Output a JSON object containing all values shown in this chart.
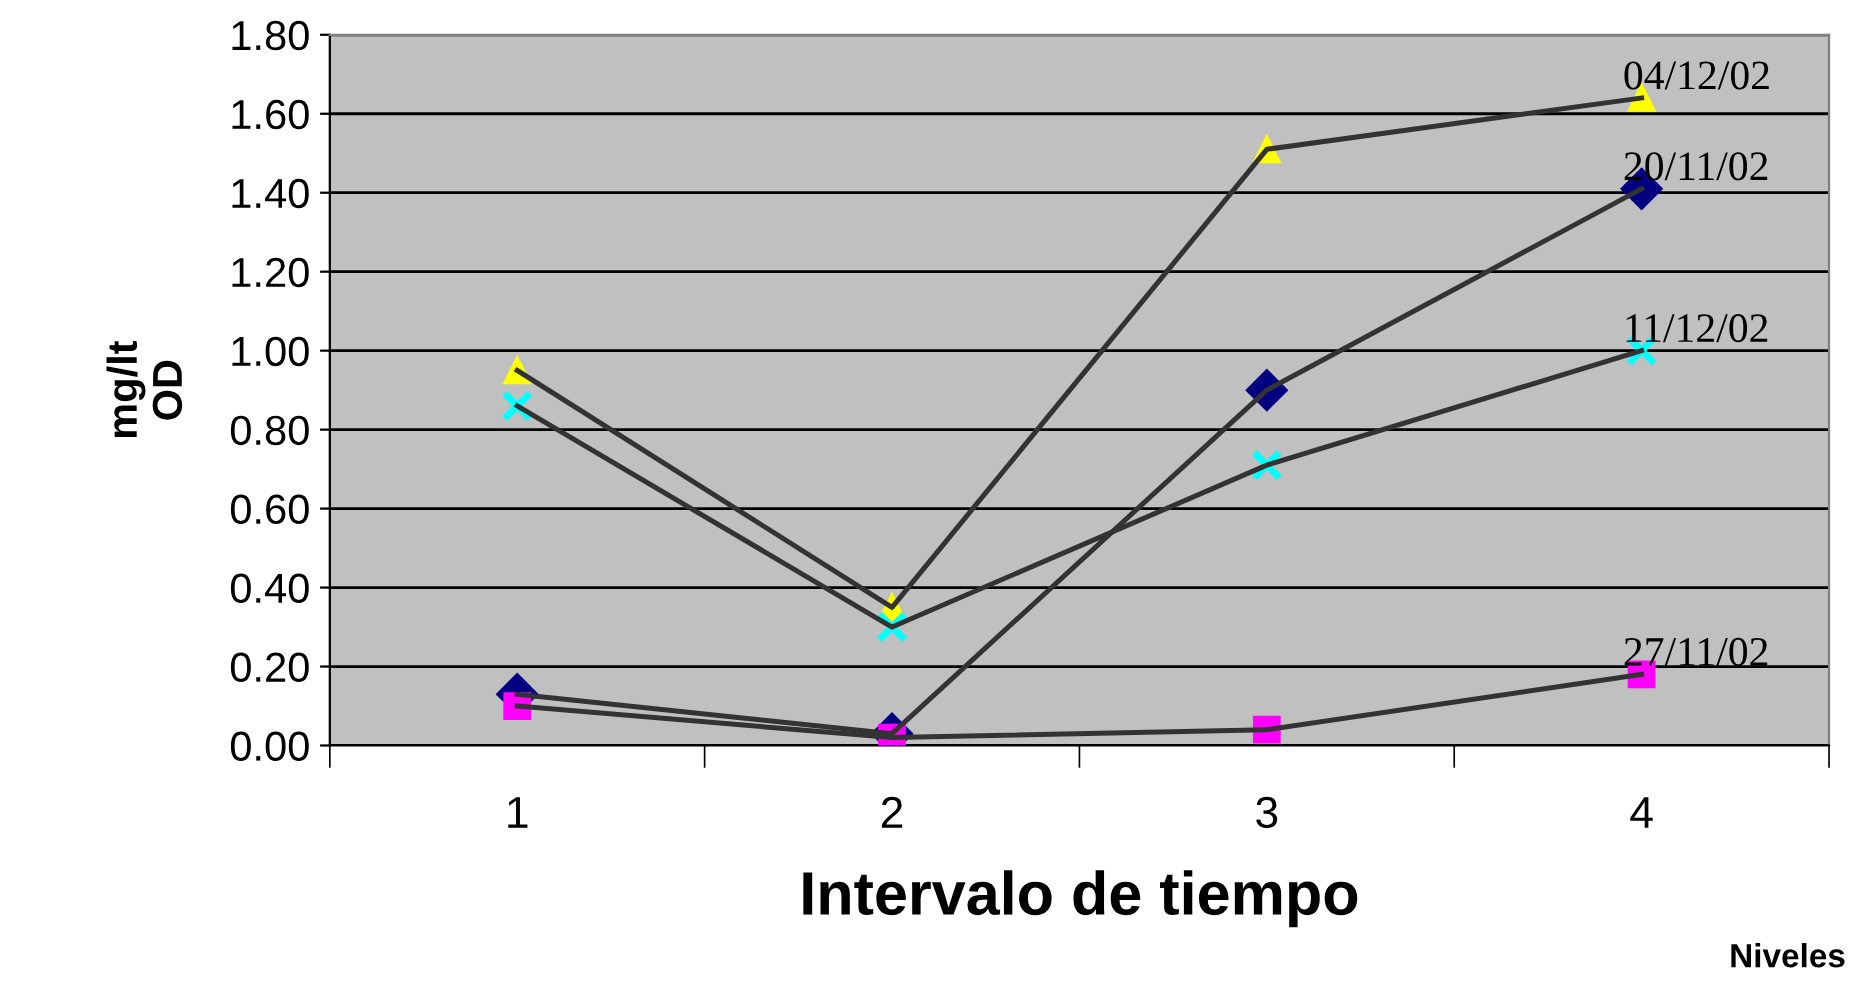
{
  "chart_data": {
    "type": "line",
    "xlabel": "Intervalo de tiempo",
    "ylabel": "mg/lt\nOD",
    "annotations": [
      "Niveles"
    ],
    "categories": [
      "1",
      "2",
      "3",
      "4"
    ],
    "ylim": [
      0,
      1.8
    ],
    "yticks": [
      {
        "value": 0,
        "label": "0.00"
      },
      {
        "value": 0.2,
        "label": "0.20"
      },
      {
        "value": 0.4,
        "label": "0.40"
      },
      {
        "value": 0.6,
        "label": "0.60"
      },
      {
        "value": 0.8,
        "label": "0.80"
      },
      {
        "value": 1.0,
        "label": "1.00"
      },
      {
        "value": 1.2,
        "label": "1.20"
      },
      {
        "value": 1.4,
        "label": "1.40"
      },
      {
        "value": 1.6,
        "label": "1.60"
      },
      {
        "value": 1.8,
        "label": "1.80"
      }
    ],
    "grid": "y",
    "legend": false,
    "line_style": "solid",
    "series": [
      {
        "name": "20/11/02",
        "color": "#000080",
        "marker": "diamond",
        "values": [
          0.13,
          0.03,
          0.9,
          1.41
        ]
      },
      {
        "name": "27/11/02",
        "color": "#ff00ff",
        "marker": "square",
        "values": [
          0.1,
          0.02,
          0.04,
          0.18
        ]
      },
      {
        "name": "04/12/02",
        "color": "#ffff00",
        "marker": "triangle",
        "values": [
          0.95,
          0.35,
          1.51,
          1.64
        ]
      },
      {
        "name": "11/12/02",
        "color": "#00ffff",
        "marker": "cross",
        "values": [
          0.86,
          0.3,
          0.71,
          1.0
        ]
      }
    ]
  }
}
